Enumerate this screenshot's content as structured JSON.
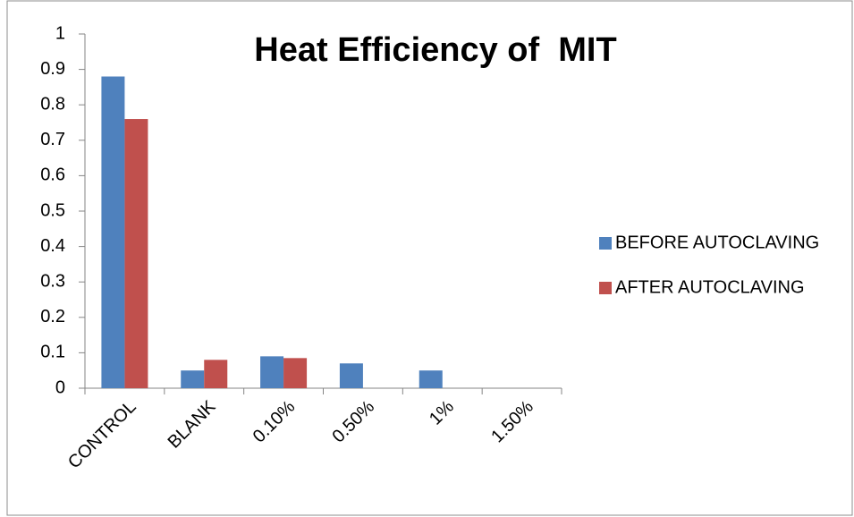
{
  "chart_data": {
    "type": "bar",
    "title": "Heat Efficiency of  MIT",
    "categories": [
      "CONTROL",
      "BLANK",
      "0.10%",
      "0.50%",
      "1%",
      "1.50%"
    ],
    "series": [
      {
        "name": "BEFORE AUTOCLAVING",
        "color": "#4f81bd",
        "values": [
          0.88,
          0.05,
          0.09,
          0.07,
          0.05,
          0
        ]
      },
      {
        "name": "AFTER AUTOCLAVING",
        "color": "#c0504d",
        "values": [
          0.76,
          0.08,
          0.085,
          0,
          0,
          0
        ]
      }
    ],
    "ylim": [
      0,
      1
    ],
    "yticks": [
      0,
      0.1,
      0.2,
      0.3,
      0.4,
      0.5,
      0.6,
      0.7,
      0.8,
      0.9,
      1
    ],
    "legend": "right"
  }
}
